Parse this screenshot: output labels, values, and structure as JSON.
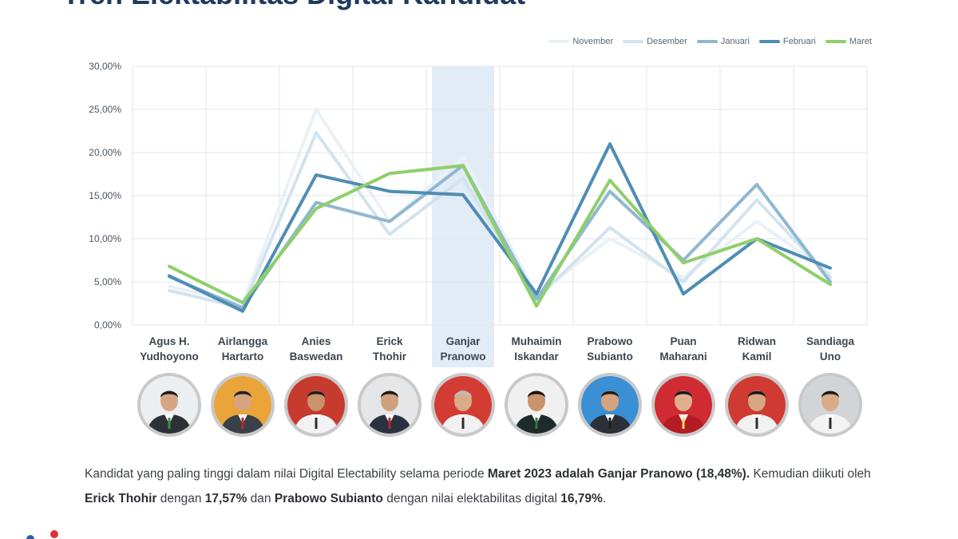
{
  "title": "Tren Elektabilitas Digital Kandidat",
  "colors": {
    "November": "#eaf1f6",
    "Desember": "#d2e3ee",
    "Januari": "#8fb8d0",
    "Februari": "#4f8db3",
    "Maret": "#8fcf6a",
    "grid": "#e1e4e8",
    "highlight": "#dde9f5"
  },
  "chart_data": {
    "type": "line",
    "title": "Tren Elektabilitas Digital Kandidat",
    "xlabel": "",
    "ylabel": "",
    "ylim": [
      0,
      30
    ],
    "yticks": [
      "0,00%",
      "5,00%",
      "10,00%",
      "15,00%",
      "20,00%",
      "25,00%",
      "30,00%"
    ],
    "grid": true,
    "legend_position": "top-right",
    "highlighted_category": "Ganjar Pranowo",
    "categories": [
      [
        "Agus H.",
        "Yudhoyono"
      ],
      [
        "Airlangga",
        "Hartarto"
      ],
      [
        "Anies",
        "Baswedan"
      ],
      [
        "Erick",
        "Thohir"
      ],
      [
        "Ganjar",
        "Pranowo"
      ],
      [
        "Muhaimin",
        "Iskandar"
      ],
      [
        "Prabowo",
        "Subianto"
      ],
      [
        "Puan",
        "Maharani"
      ],
      [
        "Ridwan",
        "Kamil"
      ],
      [
        "Sandiaga",
        "Uno"
      ]
    ],
    "series": [
      {
        "name": "November",
        "values": [
          4.5,
          2.5,
          25.0,
          12.0,
          19.5,
          3.5,
          10.0,
          5.5,
          12.0,
          6.0
        ]
      },
      {
        "name": "Desember",
        "values": [
          4.0,
          2.0,
          22.3,
          10.5,
          17.0,
          3.0,
          11.3,
          5.0,
          14.5,
          5.5
        ]
      },
      {
        "name": "Januari",
        "values": [
          5.6,
          2.0,
          14.2,
          12.0,
          18.5,
          3.0,
          15.5,
          7.5,
          16.3,
          5.0
        ]
      },
      {
        "name": "Februari",
        "values": [
          5.7,
          1.6,
          17.4,
          15.5,
          15.1,
          3.6,
          21.0,
          3.6,
          10.0,
          6.6
        ]
      },
      {
        "name": "Maret",
        "values": [
          6.8,
          2.6,
          13.5,
          17.57,
          18.48,
          2.2,
          16.79,
          7.2,
          10.0,
          4.7
        ]
      }
    ]
  },
  "avatars": [
    {
      "name": "Agus H. Yudhoyono",
      "bg": "#eceff2",
      "suit": "#2c3136",
      "skin": "#d6a684",
      "hair": "#1c1c1c",
      "accent": "#3f8a4a"
    },
    {
      "name": "Airlangga Hartarto",
      "bg": "#e9a43a",
      "suit": "#3a3f48",
      "skin": "#d8a37e",
      "hair": "#222222",
      "accent": "#c02828"
    },
    {
      "name": "Anies Baswedan",
      "bg": "#c73a2e",
      "suit": "#f2f2f2",
      "skin": "#c9936c",
      "hair": "#1f1f1f",
      "accent": "#2c2c2c"
    },
    {
      "name": "Erick Thohir",
      "bg": "#e4e6e8",
      "suit": "#2b3140",
      "skin": "#d0a07c",
      "hair": "#1a1a1a",
      "accent": "#b8282c"
    },
    {
      "name": "Ganjar Pranowo",
      "bg": "#d33c33",
      "suit": "#f1f1f1",
      "skin": "#d9ab86",
      "hair": "#bdbdbd",
      "accent": "#2c2c2c"
    },
    {
      "name": "Muhaimin Iskandar",
      "bg": "#f0f0f0",
      "suit": "#1f2a2a",
      "skin": "#c9936c",
      "hair": "#151515",
      "accent": "#2e7b45"
    },
    {
      "name": "Prabowo Subianto",
      "bg": "#3b8fd4",
      "suit": "#2a2f38",
      "skin": "#d5a37f",
      "hair": "#1c1c1c",
      "accent": "#1e1e1e"
    },
    {
      "name": "Puan Maharani",
      "bg": "#d02a32",
      "suit": "#b41c24",
      "skin": "#e0b08e",
      "hair": "#1a1a1a",
      "accent": "#f2d16b"
    },
    {
      "name": "Ridwan Kamil",
      "bg": "#cf3a32",
      "suit": "#f1f1f1",
      "skin": "#d7a682",
      "hair": "#181818",
      "accent": "#2c2c2c"
    },
    {
      "name": "Sandiaga Uno",
      "bg": "#d2d5d8",
      "suit": "#f3f3f3",
      "skin": "#d9ab86",
      "hair": "#1a1a1a",
      "accent": "#2c2c2c"
    }
  ],
  "summary": {
    "p1": "Kandidat yang paling tinggi dalam nilai Digital Electability selama periode ",
    "b1": "Maret 2023 adalah Ganjar Pranowo  (18,48%).",
    "p2": " Kemudian diikuti oleh ",
    "b2": "Erick Thohir",
    "p3": " dengan ",
    "b3": "17,57%",
    "p4": " dan ",
    "b4": "Prabowo Subianto",
    "p5": " dengan nilai elektabilitas digital ",
    "b5": "16,79%",
    "p6": "."
  }
}
